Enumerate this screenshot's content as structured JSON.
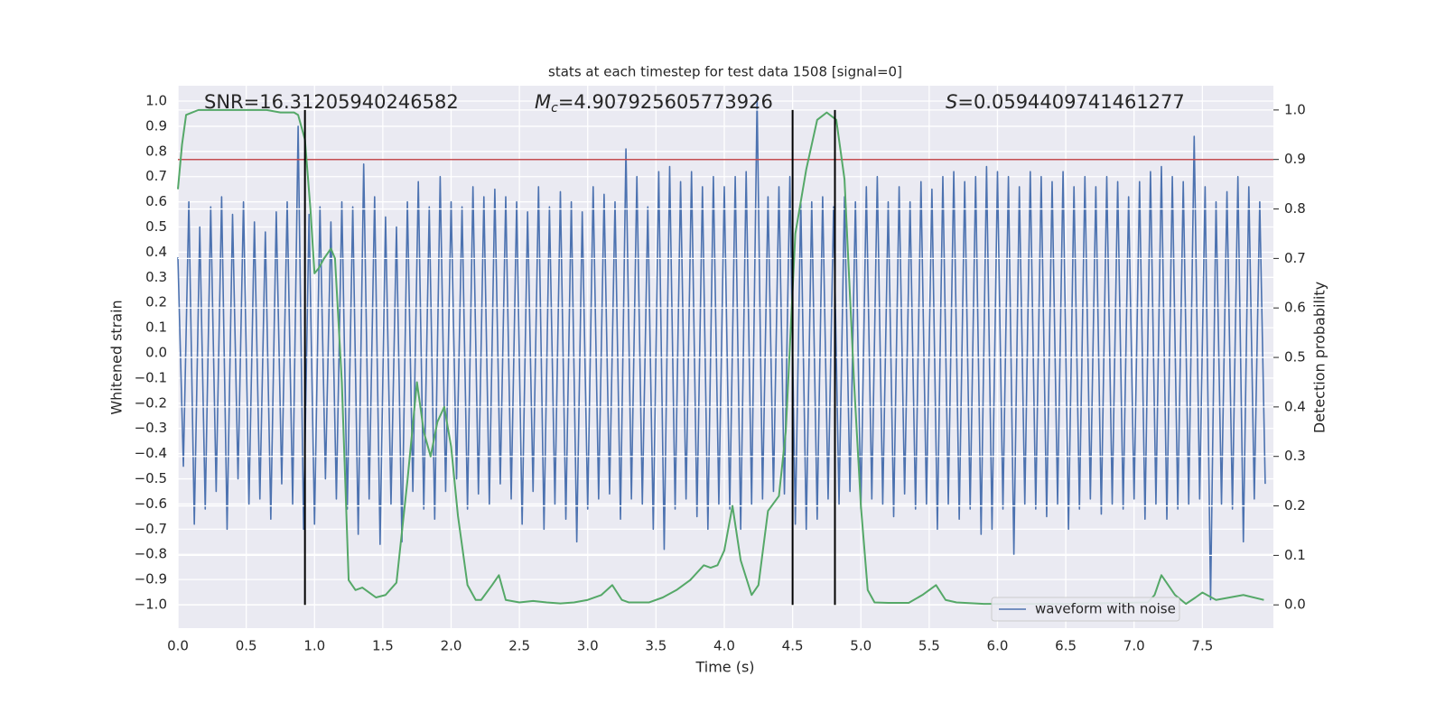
{
  "chart_data": {
    "type": "line",
    "title": "stats at each timestep for test data 1508 [signal=0]",
    "xlabel": "Time (s)",
    "ylabel": "Whitened strain",
    "y2label": "Detection probability",
    "xlim": [
      0,
      8.02
    ],
    "ylim": [
      -1.093,
      1.061
    ],
    "y2lim": [
      -0.047,
      1.049
    ],
    "grid": true,
    "legend": "lower right",
    "background": "#eaeaf2",
    "xticks": [
      {
        "value": 0,
        "label": "0.0"
      },
      {
        "value": 0.5,
        "label": "0.5"
      },
      {
        "value": 1,
        "label": "1.0"
      },
      {
        "value": 1.5,
        "label": "1.5"
      },
      {
        "value": 2,
        "label": "2.0"
      },
      {
        "value": 2.5,
        "label": "2.5"
      },
      {
        "value": 3,
        "label": "3.0"
      },
      {
        "value": 3.5,
        "label": "3.5"
      },
      {
        "value": 4,
        "label": "4.0"
      },
      {
        "value": 4.5,
        "label": "4.5"
      },
      {
        "value": 5,
        "label": "5.0"
      },
      {
        "value": 5.5,
        "label": "5.5"
      },
      {
        "value": 6,
        "label": "6.0"
      },
      {
        "value": 6.5,
        "label": "6.5"
      },
      {
        "value": 7,
        "label": "7.0"
      },
      {
        "value": 7.5,
        "label": "7.5"
      }
    ],
    "yticks": [
      {
        "value": 1,
        "label": "1.0"
      },
      0.9,
      0.8,
      0.7,
      0.6,
      0.5,
      0.4,
      0.3,
      0.2,
      0.1,
      {
        "value": 0,
        "label": "0.0"
      },
      {
        "value": -0.1,
        "label": "−0.1"
      },
      {
        "value": -0.2,
        "label": "−0.2"
      },
      {
        "value": -0.3,
        "label": "−0.3"
      },
      {
        "value": -0.4,
        "label": "−0.4"
      },
      {
        "value": -0.5,
        "label": "−0.5"
      },
      {
        "value": -0.6,
        "label": "−0.6"
      },
      {
        "value": -0.7,
        "label": "−0.7"
      },
      {
        "value": -0.8,
        "label": "−0.8"
      },
      {
        "value": -0.9,
        "label": "−0.9"
      },
      {
        "value": -1,
        "label": "−1.0"
      }
    ],
    "y2ticks": [
      {
        "value": 1,
        "label": "1.0"
      },
      0.9,
      0.8,
      0.7,
      0.6,
      0.5,
      0.4,
      0.3,
      0.2,
      0.1,
      {
        "value": 0,
        "label": "0.0"
      }
    ],
    "threshold": {
      "axis": "y2",
      "value": 0.9,
      "color": "#c44e52"
    },
    "vlines": {
      "x": [
        0.93,
        4.5,
        4.81
      ],
      "y2": [
        0,
        1
      ],
      "color": "#000000"
    },
    "annotations": [
      {
        "text": "SNR=16.31205940246582"
      },
      {
        "symbol": "M",
        "subscript": "c",
        "text": "=4.907925605773926"
      },
      {
        "symbol": "S",
        "text": "=0.0594409741461277"
      }
    ],
    "series": [
      {
        "name": "waveform with noise",
        "color": "#4c72b0",
        "x": [
          0,
          0.04,
          0.08,
          0.12,
          0.16,
          0.2,
          0.24,
          0.28,
          0.32,
          0.36,
          0.4,
          0.44,
          0.48,
          0.52,
          0.56,
          0.6,
          0.64,
          0.68,
          0.72,
          0.76,
          0.8,
          0.84,
          0.88,
          0.92,
          0.96,
          1,
          1.04,
          1.08,
          1.12,
          1.16,
          1.2,
          1.24,
          1.28,
          1.32,
          1.36,
          1.4,
          1.44,
          1.48,
          1.52,
          1.56,
          1.6,
          1.64,
          1.68,
          1.72,
          1.76,
          1.8,
          1.84,
          1.88,
          1.92,
          1.96,
          2,
          2.04,
          2.08,
          2.12,
          2.16,
          2.2,
          2.24,
          2.28,
          2.32,
          2.36,
          2.4,
          2.44,
          2.48,
          2.52,
          2.56,
          2.6,
          2.64,
          2.68,
          2.72,
          2.76,
          2.8,
          2.84,
          2.88,
          2.92,
          2.96,
          3,
          3.04,
          3.08,
          3.12,
          3.16,
          3.2,
          3.24,
          3.28,
          3.32,
          3.36,
          3.4,
          3.44,
          3.48,
          3.52,
          3.56,
          3.6,
          3.64,
          3.68,
          3.72,
          3.76,
          3.8,
          3.84,
          3.88,
          3.92,
          3.96,
          4,
          4.04,
          4.08,
          4.12,
          4.16,
          4.2,
          4.24,
          4.28,
          4.32,
          4.36,
          4.4,
          4.44,
          4.48,
          4.52,
          4.56,
          4.6,
          4.64,
          4.68,
          4.72,
          4.76,
          4.8,
          4.84,
          4.88,
          4.92,
          4.96,
          5,
          5.04,
          5.08,
          5.12,
          5.16,
          5.2,
          5.24,
          5.28,
          5.32,
          5.36,
          5.4,
          5.44,
          5.48,
          5.52,
          5.56,
          5.6,
          5.64,
          5.68,
          5.72,
          5.76,
          5.8,
          5.84,
          5.88,
          5.92,
          5.96,
          6,
          6.04,
          6.08,
          6.12,
          6.16,
          6.2,
          6.24,
          6.28,
          6.32,
          6.36,
          6.4,
          6.44,
          6.48,
          6.52,
          6.56,
          6.6,
          6.64,
          6.68,
          6.72,
          6.76,
          6.8,
          6.84,
          6.88,
          6.92,
          6.96,
          7,
          7.04,
          7.08,
          7.12,
          7.16,
          7.2,
          7.24,
          7.28,
          7.32,
          7.36,
          7.4,
          7.44,
          7.48,
          7.52,
          7.56,
          7.6,
          7.64,
          7.68,
          7.72,
          7.76,
          7.8,
          7.84,
          7.88,
          7.92,
          7.96
        ],
        "values": [
          0.38,
          -0.45,
          0.6,
          -0.68,
          0.5,
          -0.62,
          0.58,
          -0.55,
          0.62,
          -0.7,
          0.55,
          -0.5,
          0.6,
          -0.6,
          0.52,
          -0.58,
          0.48,
          -0.66,
          0.56,
          -0.52,
          0.6,
          -0.6,
          0.9,
          -0.7,
          0.55,
          -0.68,
          0.58,
          -0.5,
          0.52,
          -0.58,
          0.6,
          -0.62,
          0.58,
          -0.72,
          0.75,
          -0.58,
          0.62,
          -0.76,
          0.54,
          -0.6,
          0.5,
          -0.75,
          0.6,
          -0.55,
          0.68,
          -0.62,
          0.58,
          -0.66,
          0.7,
          -0.55,
          0.6,
          -0.5,
          0.58,
          -0.62,
          0.66,
          -0.56,
          0.62,
          -0.6,
          0.65,
          -0.52,
          0.62,
          -0.58,
          0.6,
          -0.68,
          0.56,
          -0.55,
          0.66,
          -0.7,
          0.58,
          -0.6,
          0.64,
          -0.66,
          0.6,
          -0.75,
          0.56,
          -0.62,
          0.66,
          -0.58,
          0.63,
          -0.56,
          0.6,
          -0.66,
          0.81,
          -0.58,
          0.7,
          -0.6,
          0.58,
          -0.7,
          0.72,
          -0.78,
          0.74,
          -0.62,
          0.68,
          -0.58,
          0.72,
          -0.65,
          0.66,
          -0.7,
          0.7,
          -0.6,
          0.66,
          -0.62,
          0.7,
          -0.7,
          0.72,
          -0.6,
          1.01,
          -0.58,
          0.62,
          -0.55,
          0.66,
          -0.56,
          0.7,
          -0.68,
          0.6,
          -0.7,
          0.6,
          -0.66,
          0.62,
          -0.58,
          0.58,
          -0.6,
          0.62,
          -0.55,
          0.6,
          -0.62,
          0.66,
          -0.58,
          0.7,
          -0.6,
          0.6,
          -0.65,
          0.66,
          -0.56,
          0.6,
          -0.62,
          0.68,
          -0.6,
          0.65,
          -0.7,
          0.7,
          -0.6,
          0.72,
          -0.66,
          0.68,
          -0.62,
          0.7,
          -0.72,
          0.74,
          -0.7,
          0.72,
          -0.62,
          0.7,
          -0.8,
          0.66,
          -0.6,
          0.72,
          -0.62,
          0.7,
          -0.65,
          0.68,
          -0.6,
          0.72,
          -0.7,
          0.66,
          -0.62,
          0.7,
          -0.58,
          0.66,
          -0.64,
          0.7,
          -0.6,
          0.68,
          -0.62,
          0.62,
          -0.58,
          0.68,
          -0.66,
          0.72,
          -0.6,
          0.74,
          -0.66,
          0.7,
          -0.62,
          0.68,
          -0.6,
          0.86,
          -0.58,
          0.66,
          -0.98,
          0.6,
          -0.6,
          0.64,
          -0.62,
          0.7,
          -0.75,
          0.66,
          -0.58,
          0.6,
          -0.52
        ]
      },
      {
        "axis": "y2",
        "color": "#55a868",
        "x": [
          0,
          0.03,
          0.06,
          0.15,
          0.3,
          0.5,
          0.65,
          0.75,
          0.85,
          0.88,
          0.93,
          0.97,
          1,
          1.03,
          1.07,
          1.12,
          1.15,
          1.2,
          1.25,
          1.3,
          1.35,
          1.4,
          1.45,
          1.52,
          1.6,
          1.68,
          1.75,
          1.8,
          1.85,
          1.9,
          1.95,
          2,
          2.05,
          2.12,
          2.18,
          2.22,
          2.3,
          2.35,
          2.4,
          2.5,
          2.6,
          2.7,
          2.8,
          2.9,
          3,
          3.1,
          3.18,
          3.25,
          3.3,
          3.45,
          3.55,
          3.65,
          3.75,
          3.85,
          3.9,
          3.95,
          4,
          4.06,
          4.12,
          4.2,
          4.25,
          4.32,
          4.4,
          4.45,
          4.52,
          4.6,
          4.68,
          4.75,
          4.82,
          4.88,
          4.95,
          5,
          5.05,
          5.1,
          5.2,
          5.35,
          5.45,
          5.55,
          5.62,
          5.7,
          5.9,
          6.1,
          6.5,
          6.9,
          7.1,
          7.15,
          7.2,
          7.3,
          7.38,
          7.45,
          7.5,
          7.6,
          7.7,
          7.8,
          7.95
        ],
        "values": [
          0.84,
          0.93,
          0.99,
          1,
          1,
          1,
          1,
          0.995,
          0.995,
          0.99,
          0.94,
          0.8,
          0.67,
          0.68,
          0.7,
          0.72,
          0.7,
          0.45,
          0.05,
          0.03,
          0.035,
          0.025,
          0.015,
          0.02,
          0.045,
          0.25,
          0.45,
          0.35,
          0.3,
          0.37,
          0.4,
          0.32,
          0.18,
          0.04,
          0.01,
          0.01,
          0.04,
          0.06,
          0.01,
          0.005,
          0.008,
          0.005,
          0.003,
          0.005,
          0.01,
          0.02,
          0.04,
          0.01,
          0.005,
          0.005,
          0.015,
          0.03,
          0.05,
          0.08,
          0.075,
          0.08,
          0.11,
          0.2,
          0.09,
          0.02,
          0.04,
          0.19,
          0.22,
          0.35,
          0.75,
          0.88,
          0.98,
          0.995,
          0.98,
          0.86,
          0.45,
          0.2,
          0.03,
          0.005,
          0.004,
          0.004,
          0.02,
          0.04,
          0.01,
          0.005,
          0.002,
          0.002,
          0.002,
          0.004,
          0.005,
          0.02,
          0.06,
          0.02,
          0.002,
          0.015,
          0.025,
          0.01,
          0.015,
          0.02,
          0.01
        ]
      }
    ]
  }
}
